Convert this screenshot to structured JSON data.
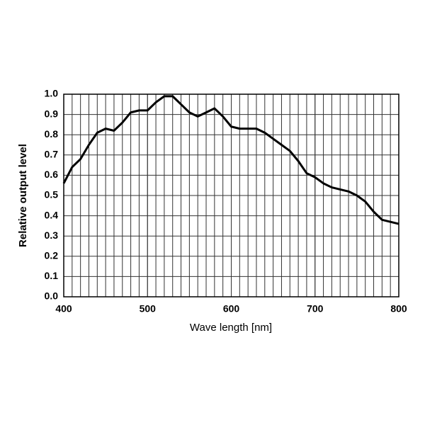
{
  "chart_data": {
    "type": "line",
    "xlabel": "Wave length [nm]",
    "ylabel": "Relative output level",
    "x": [
      400,
      410,
      420,
      430,
      440,
      450,
      460,
      470,
      480,
      490,
      500,
      510,
      520,
      530,
      540,
      550,
      560,
      570,
      580,
      590,
      600,
      610,
      620,
      630,
      640,
      650,
      660,
      670,
      680,
      690,
      700,
      710,
      720,
      730,
      740,
      750,
      760,
      770,
      780,
      790,
      800
    ],
    "series": [
      {
        "color": "#000000",
        "values": [
          0.56,
          0.64,
          0.68,
          0.75,
          0.81,
          0.83,
          0.82,
          0.86,
          0.91,
          0.92,
          0.92,
          0.96,
          0.99,
          0.99,
          0.95,
          0.91,
          0.89,
          0.91,
          0.93,
          0.89,
          0.84,
          0.83,
          0.83,
          0.83,
          0.81,
          0.78,
          0.75,
          0.72,
          0.67,
          0.61,
          0.59,
          0.56,
          0.54,
          0.53,
          0.52,
          0.5,
          0.47,
          0.42,
          0.38,
          0.37,
          0.36
        ]
      }
    ],
    "xlim": [
      400,
      800
    ],
    "xticks": [
      400,
      500,
      600,
      700,
      800
    ],
    "x_minor_grid_step": 10,
    "ylim": [
      0,
      1
    ],
    "yticks": [
      {
        "value": 0,
        "label": "0.0"
      },
      0.1,
      0.2,
      0.3,
      0.4,
      0.5,
      0.6,
      0.7,
      0.8,
      0.9,
      {
        "value": 1,
        "label": "1.0"
      }
    ],
    "grid": true
  }
}
